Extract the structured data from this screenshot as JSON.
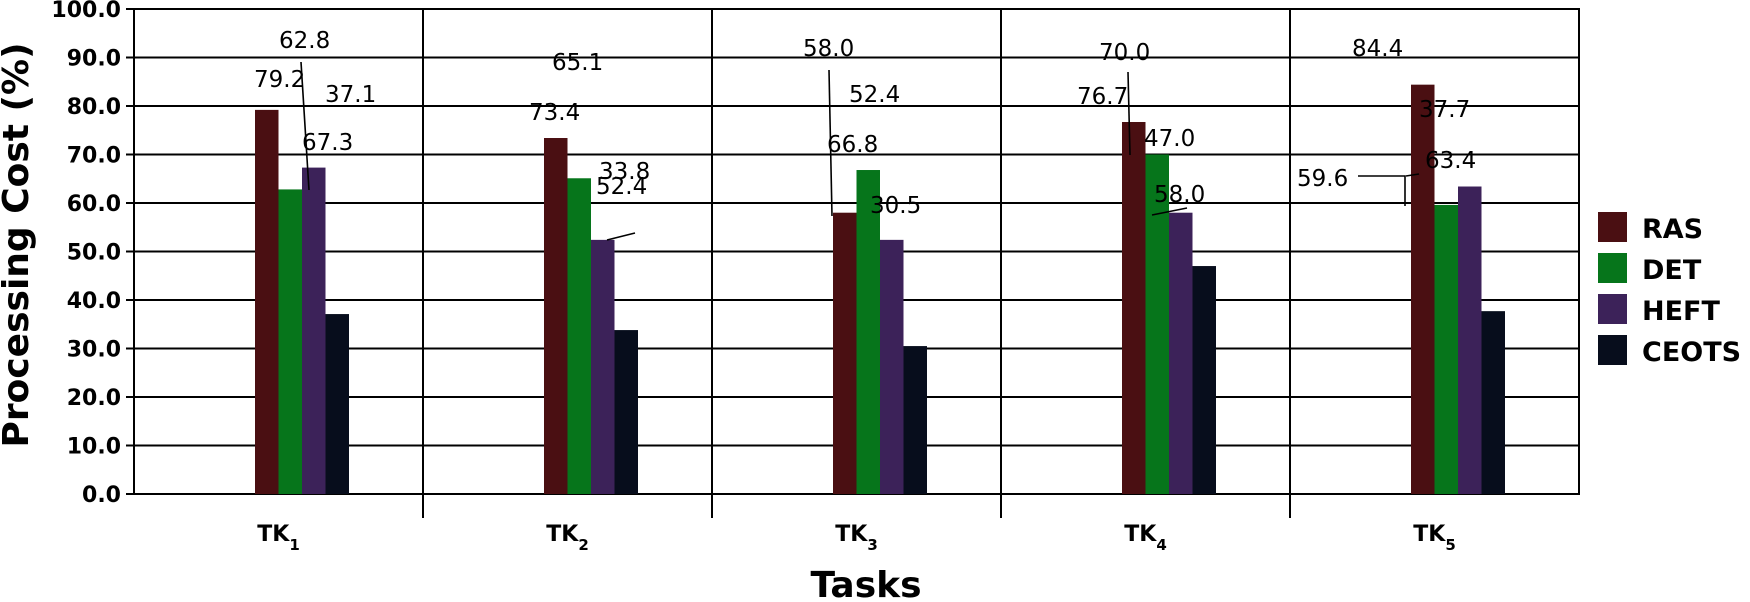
{
  "chart_data": {
    "type": "bar",
    "title": "",
    "xlabel": "Tasks",
    "ylabel": "Processing Cost (%)",
    "ylim": [
      0,
      100
    ],
    "yticks": [
      "0.0",
      "10.0",
      "20.0",
      "30.0",
      "40.0",
      "50.0",
      "60.0",
      "70.0",
      "80.0",
      "90.0",
      "100.0"
    ],
    "grid": true,
    "legend_position": "right",
    "categories": [
      {
        "base": "TK",
        "sub": "1"
      },
      {
        "base": "TK",
        "sub": "2"
      },
      {
        "base": "TK",
        "sub": "3"
      },
      {
        "base": "TK",
        "sub": "4"
      },
      {
        "base": "TK",
        "sub": "5"
      }
    ],
    "series": [
      {
        "name": "RAS",
        "color": "#4a0f12",
        "values": [
          79.2,
          73.4,
          58.0,
          76.7,
          84.4
        ],
        "labels": [
          "79.2",
          "73.4",
          "58.0",
          "76.7",
          "84.4"
        ]
      },
      {
        "name": "DET",
        "color": "#06751b",
        "values": [
          62.8,
          65.1,
          66.8,
          70.0,
          59.6
        ],
        "labels": [
          "62.8",
          "65.1",
          "66.8",
          "70.0",
          "59.6"
        ]
      },
      {
        "name": "HEFT",
        "color": "#3c2259",
        "values": [
          67.3,
          52.4,
          52.4,
          58.0,
          63.4
        ],
        "labels": [
          "67.3",
          "52.4",
          "52.4",
          "58.0",
          "63.4"
        ]
      },
      {
        "name": "CEOTS",
        "color": "#070d1c",
        "values": [
          37.1,
          33.8,
          30.5,
          47.0,
          37.7
        ],
        "labels": [
          "37.1",
          "33.8",
          "30.5",
          "47.0",
          "37.7"
        ]
      }
    ]
  }
}
